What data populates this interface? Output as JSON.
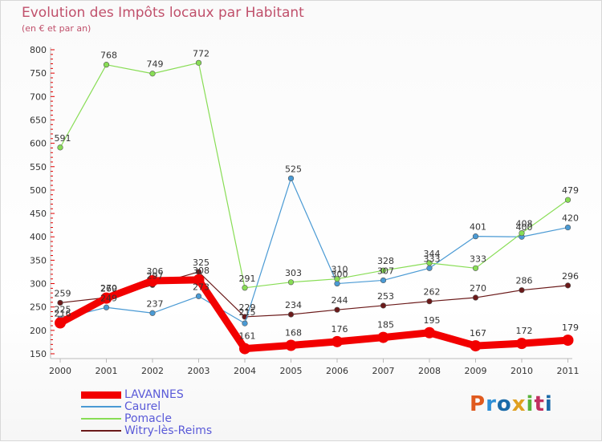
{
  "title": "Evolution des Impôts locaux par Habitant",
  "subtitle": "(en € et par an)",
  "logo": {
    "text": "Proxiti",
    "colors": [
      "#e05a1e",
      "#2e8fd6",
      "#1a6aa8",
      "#e0a020",
      "#57b33a",
      "#c03060",
      "#1a6aa8"
    ]
  },
  "chart_data": {
    "type": "line",
    "title": "Evolution des Impôts locaux par Habitant",
    "subtitle": "(en € et par an)",
    "x": [
      "2000",
      "2001",
      "2002",
      "2003",
      "2004",
      "2005",
      "2006",
      "2007",
      "2008",
      "2009",
      "2010",
      "2011"
    ],
    "ylim": [
      150,
      800
    ],
    "yticks": [
      150,
      200,
      250,
      300,
      350,
      400,
      450,
      500,
      550,
      600,
      650,
      700,
      750,
      800
    ],
    "grid": false,
    "legend": "bottom-left",
    "series": [
      {
        "name": "Witry-lès-Reims",
        "color": "#6b1a1a",
        "values": [
          259,
          270,
          297,
          325,
          229,
          234,
          244,
          253,
          262,
          270,
          286,
          296
        ]
      },
      {
        "name": "Caurel",
        "color": "#4a9ad4",
        "values": [
          225,
          249,
          237,
          273,
          215,
          525,
          300,
          307,
          333,
          401,
          400,
          420
        ]
      },
      {
        "name": "Pomacle",
        "color": "#88dd55",
        "values": [
          591,
          768,
          749,
          772,
          291,
          303,
          310,
          328,
          344,
          333,
          408,
          479
        ]
      },
      {
        "name": "LAVANNES",
        "color": "#f20000",
        "values": [
          216,
          269,
          306,
          308,
          161,
          168,
          176,
          185,
          195,
          167,
          172,
          179
        ]
      }
    ],
    "legend_order": [
      "LAVANNES",
      "Caurel",
      "Pomacle",
      "Witry-lès-Reims"
    ],
    "data_label_text": {
      "Witry-lès-Reims": [
        "259",
        "270",
        "297",
        "325",
        "229",
        "234",
        "244",
        "253",
        "262",
        "270",
        "286",
        "296"
      ],
      "Caurel": [
        "225",
        "249",
        "237",
        "273",
        "215",
        "525",
        "300",
        "307",
        "333",
        "401",
        "400",
        "420"
      ],
      "Pomacle": [
        "591",
        "768",
        "749",
        "772",
        "291",
        "303",
        "310",
        "328",
        "344",
        "333",
        "408",
        "479"
      ],
      "LAVANNES": [
        "216",
        "269",
        "306",
        "308",
        "161",
        "168",
        "176",
        "185",
        "195",
        "167",
        "172",
        "179"
      ]
    }
  }
}
